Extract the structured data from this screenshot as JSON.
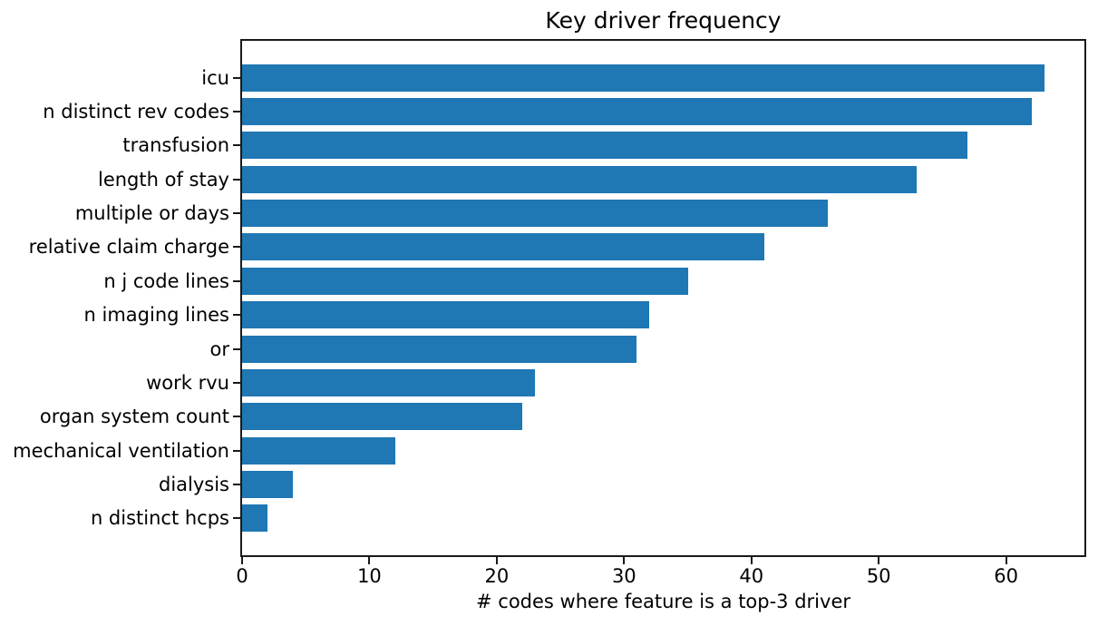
{
  "chart_data": {
    "type": "bar",
    "orientation": "horizontal",
    "title": "Key driver frequency",
    "xlabel": "# codes where feature is a top-3 driver",
    "ylabel": "",
    "categories": [
      "icu",
      "n distinct rev codes",
      "transfusion",
      "length of stay",
      "multiple or days",
      "relative claim charge",
      "n j code lines",
      "n imaging lines",
      "or",
      "work rvu",
      "organ system count",
      "mechanical ventilation",
      "dialysis",
      "n distinct hcps"
    ],
    "values": [
      63,
      62,
      57,
      53,
      46,
      41,
      35,
      32,
      31,
      23,
      22,
      12,
      4,
      2
    ],
    "xticks": [
      0,
      10,
      20,
      30,
      40,
      50,
      60
    ],
    "xlim": [
      0,
      66.15
    ],
    "grid": false,
    "legend_position": "none",
    "bar_color": "#1f77b4",
    "spine_color": "#1a1a1a",
    "background_color": "#ffffff"
  }
}
